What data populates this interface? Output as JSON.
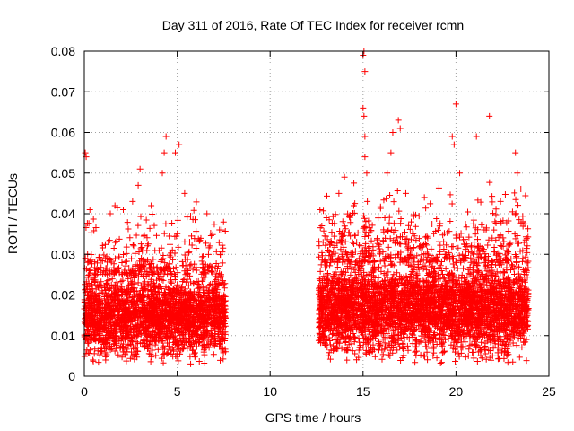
{
  "chart_data": {
    "type": "scatter",
    "title": "Day 311 of 2016, Rate Of TEC Index for receiver rcmn",
    "xlabel": "GPS time / hours",
    "ylabel": "ROTI / TECUs",
    "xlim": [
      0,
      25
    ],
    "ylim": [
      0,
      0.08
    ],
    "x_ticks": [
      0,
      5,
      10,
      15,
      20,
      25
    ],
    "x_tick_labels": [
      "0",
      "5",
      "10",
      "15",
      "20",
      "25"
    ],
    "y_ticks": [
      0,
      0.01,
      0.02,
      0.03,
      0.04,
      0.05,
      0.06,
      0.07,
      0.08
    ],
    "y_tick_labels": [
      "0",
      "0.01",
      "0.02",
      "0.03",
      "0.04",
      "0.05",
      "0.06",
      "0.07",
      "0.08"
    ],
    "grid": true,
    "marker": "+",
    "marker_color": "#ff0000",
    "series": [
      {
        "name": "ROTI",
        "segments": [
          {
            "x_start": 0.0,
            "x_end": 7.6,
            "density": 2600,
            "typical_range": [
              0.005,
              0.025
            ],
            "noted_peak": {
              "x": 4.4,
              "y": 0.059
            }
          },
          {
            "x_start": 12.6,
            "x_end": 23.9,
            "density": 4200,
            "typical_range": [
              0.005,
              0.028
            ],
            "noted_peak": {
              "x": 15.1,
              "y": 0.08
            }
          }
        ],
        "outliers": [
          {
            "x": 0.05,
            "y": 0.055
          },
          {
            "x": 0.1,
            "y": 0.054
          },
          {
            "x": 0.3,
            "y": 0.041
          },
          {
            "x": 1.4,
            "y": 0.04
          },
          {
            "x": 2.1,
            "y": 0.041
          },
          {
            "x": 2.6,
            "y": 0.043
          },
          {
            "x": 2.9,
            "y": 0.047
          },
          {
            "x": 3.0,
            "y": 0.051
          },
          {
            "x": 3.6,
            "y": 0.042
          },
          {
            "x": 4.2,
            "y": 0.05
          },
          {
            "x": 4.3,
            "y": 0.055
          },
          {
            "x": 4.4,
            "y": 0.059
          },
          {
            "x": 4.9,
            "y": 0.055
          },
          {
            "x": 5.1,
            "y": 0.057
          },
          {
            "x": 5.4,
            "y": 0.045
          },
          {
            "x": 6.6,
            "y": 0.04
          },
          {
            "x": 7.4,
            "y": 0.036
          },
          {
            "x": 13.7,
            "y": 0.045
          },
          {
            "x": 14.0,
            "y": 0.049
          },
          {
            "x": 14.5,
            "y": 0.042
          },
          {
            "x": 15.0,
            "y": 0.079
          },
          {
            "x": 15.05,
            "y": 0.08
          },
          {
            "x": 15.1,
            "y": 0.075
          },
          {
            "x": 15.0,
            "y": 0.066
          },
          {
            "x": 15.05,
            "y": 0.064
          },
          {
            "x": 15.1,
            "y": 0.059
          },
          {
            "x": 15.1,
            "y": 0.054
          },
          {
            "x": 15.2,
            "y": 0.05
          },
          {
            "x": 16.3,
            "y": 0.05
          },
          {
            "x": 16.5,
            "y": 0.055
          },
          {
            "x": 16.6,
            "y": 0.06
          },
          {
            "x": 16.9,
            "y": 0.063
          },
          {
            "x": 17.0,
            "y": 0.061
          },
          {
            "x": 17.3,
            "y": 0.045
          },
          {
            "x": 18.3,
            "y": 0.044
          },
          {
            "x": 19.8,
            "y": 0.059
          },
          {
            "x": 19.9,
            "y": 0.057
          },
          {
            "x": 20.0,
            "y": 0.067
          },
          {
            "x": 20.2,
            "y": 0.05
          },
          {
            "x": 21.1,
            "y": 0.059
          },
          {
            "x": 21.8,
            "y": 0.064
          },
          {
            "x": 22.4,
            "y": 0.043
          },
          {
            "x": 23.2,
            "y": 0.055
          },
          {
            "x": 23.3,
            "y": 0.05
          },
          {
            "x": 23.6,
            "y": 0.038
          }
        ]
      }
    ]
  }
}
